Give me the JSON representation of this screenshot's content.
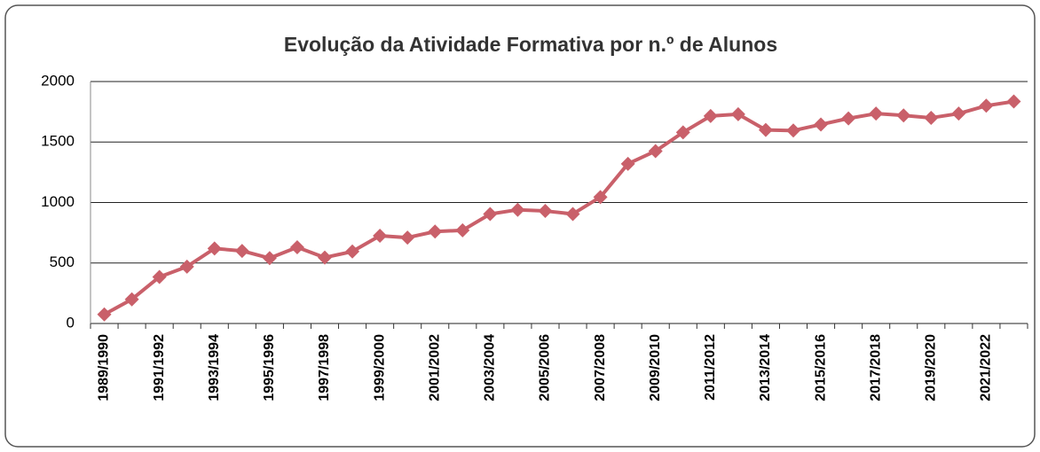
{
  "chart_data": {
    "type": "line",
    "title": "Evolução da Atividade Formativa por n.º de Alunos",
    "categories": [
      "1989/1990",
      null,
      "1991/1992",
      null,
      "1993/1994",
      null,
      "1995/1996",
      null,
      "1997/1998",
      null,
      "1999/2000",
      null,
      "2001/2002",
      null,
      "2003/2004",
      null,
      "2005/2006",
      null,
      "2007/2008",
      null,
      "2009/2010",
      null,
      "2011/2012",
      null,
      "2013/2014",
      null,
      "2015/2016",
      null,
      "2017/2018",
      null,
      "2019/2020",
      null,
      "2021/2022",
      null
    ],
    "values": [
      75,
      200,
      385,
      470,
      620,
      600,
      540,
      630,
      545,
      595,
      725,
      710,
      760,
      770,
      905,
      940,
      930,
      905,
      1045,
      1320,
      1425,
      1580,
      1715,
      1730,
      1600,
      1595,
      1645,
      1695,
      1735,
      1720,
      1700,
      1735,
      1800,
      1835
    ],
    "color": "#c9606a",
    "ylim": [
      0,
      2000
    ],
    "yticks": [
      0,
      500,
      1000,
      1500,
      2000
    ],
    "grid": true
  }
}
